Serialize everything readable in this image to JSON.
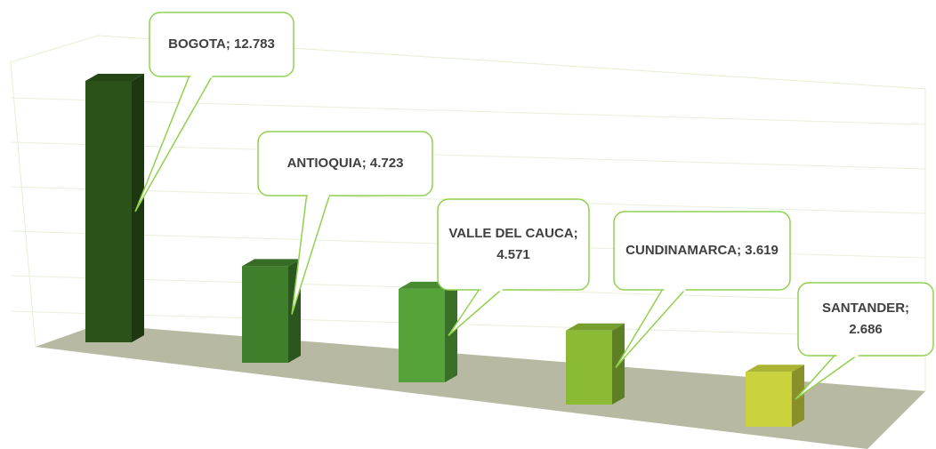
{
  "chart_data": {
    "type": "bar3d",
    "values": [
      12.783,
      4.723,
      4.571,
      3.619,
      2.686
    ],
    "value_labels": [
      "BOGOTA; 12.783",
      "ANTIOQUIA; 4.723",
      "VALLE DEL CAUCA;  4.571",
      "CUNDINAMARCA; 3.619",
      "SANTANDER; 2.686"
    ],
    "colors": [
      "#2b5219",
      "#3f7f2b",
      "#56a33a",
      "#8bbb35",
      "#c9d23c"
    ]
  }
}
